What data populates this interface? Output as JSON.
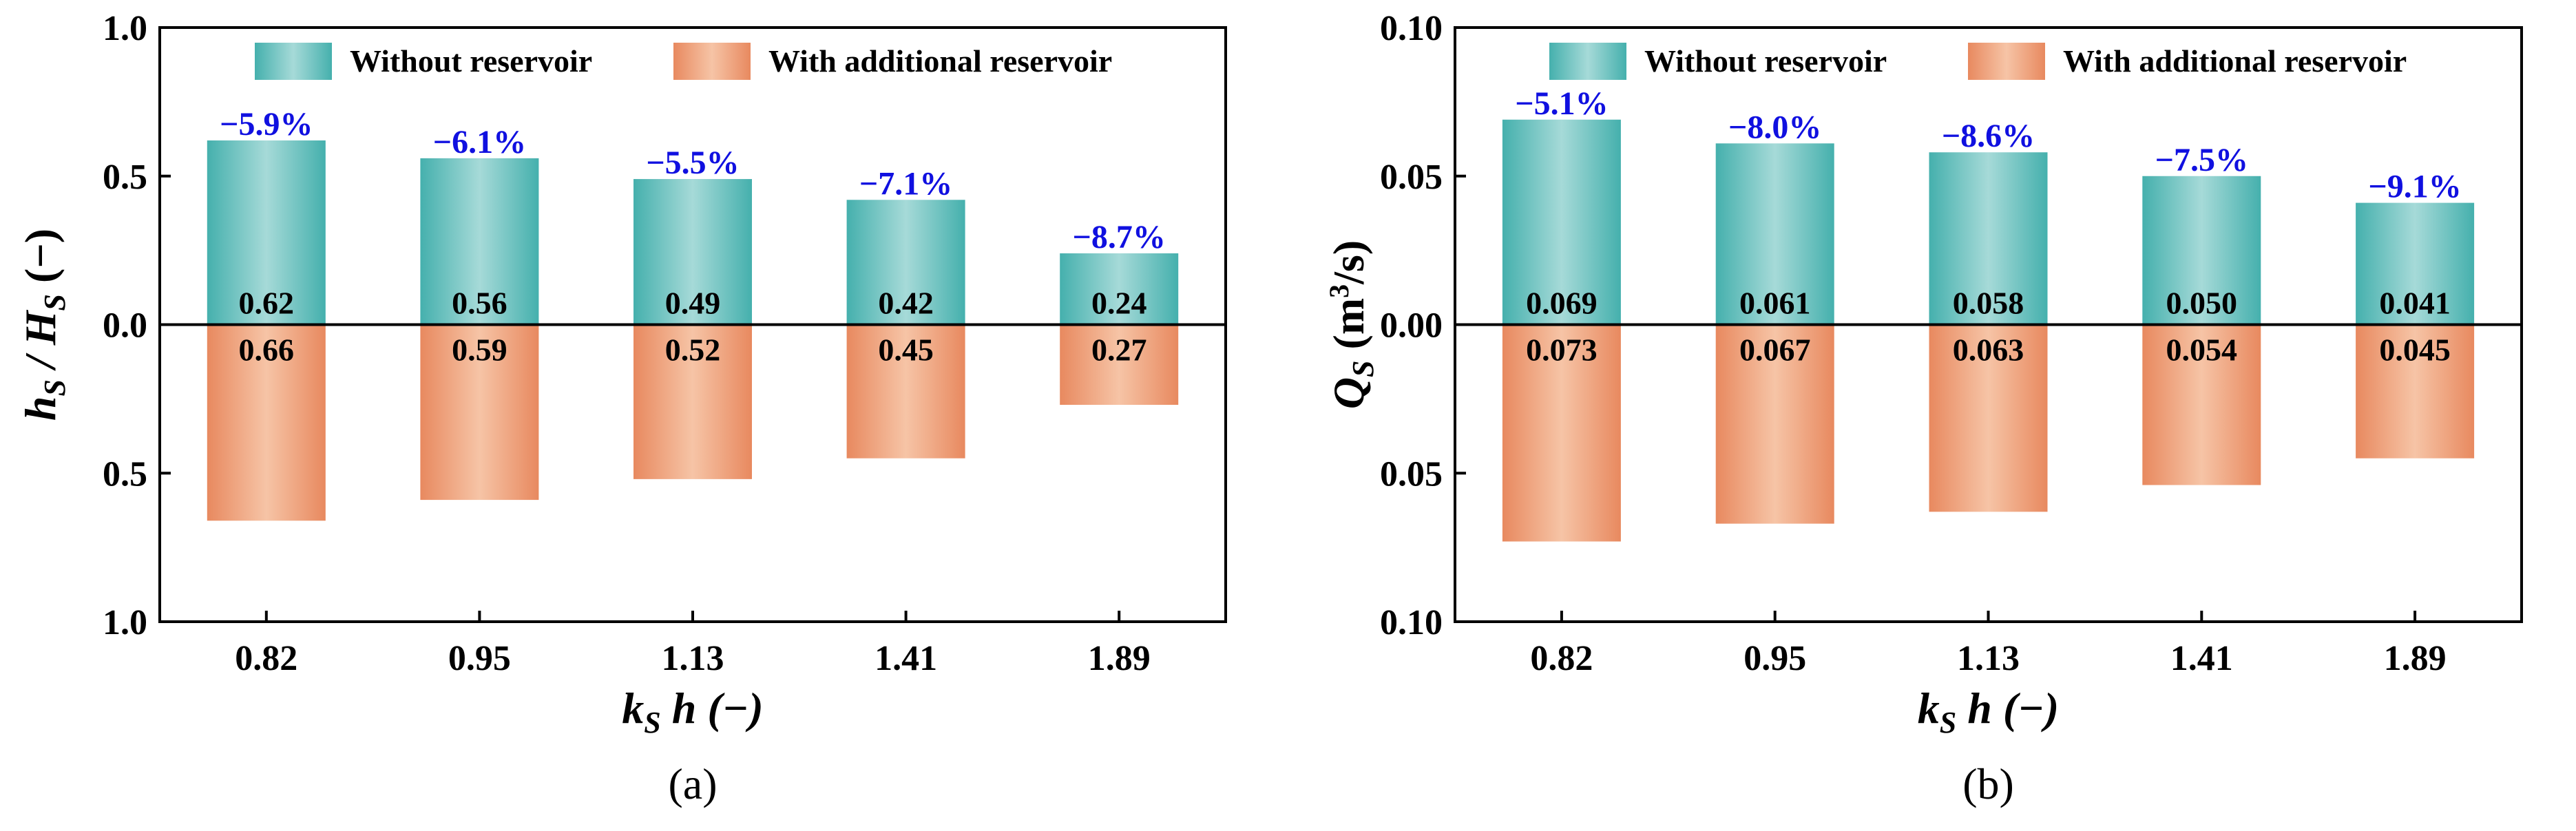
{
  "colors": {
    "without": "#45b0ad",
    "with": "#e8895f",
    "pct": "#1010e0"
  },
  "legend": {
    "without": "Without reservoir",
    "with": "With additional reservoir"
  },
  "chart_data": [
    {
      "type": "bar",
      "panel_label": "(a)",
      "categories": [
        "0.82",
        "0.95",
        "1.13",
        "1.41",
        "1.89"
      ],
      "series": [
        {
          "name": "Without reservoir",
          "direction": "up",
          "values": [
            0.62,
            0.56,
            0.49,
            0.42,
            0.24
          ],
          "labels": [
            "0.62",
            "0.56",
            "0.49",
            "0.42",
            "0.24"
          ]
        },
        {
          "name": "With additional reservoir",
          "direction": "down",
          "values": [
            0.66,
            0.59,
            0.52,
            0.45,
            0.27
          ],
          "labels": [
            "0.66",
            "0.59",
            "0.52",
            "0.45",
            "0.27"
          ]
        }
      ],
      "change_labels": [
        "−5.9%",
        "−6.1%",
        "−5.5%",
        "−7.1%",
        "−8.7%"
      ],
      "yticks": [
        {
          "value": 1.0,
          "label": "1.0"
        },
        {
          "value": 0.5,
          "label": "0.5"
        },
        {
          "value": 0.0,
          "label": "0.0"
        },
        {
          "value": -0.5,
          "label": "0.5"
        },
        {
          "value": -1.0,
          "label": "1.0"
        }
      ],
      "ylim": [
        -1.0,
        1.0
      ],
      "xlabel": {
        "main1": "k",
        "sub1": "S",
        "main2": " h (−)"
      },
      "ylabel": {
        "main1": "h",
        "sub1": "S",
        "mid": " / ",
        "main2": "H",
        "sub2": "S",
        "tail": " (−)"
      }
    },
    {
      "type": "bar",
      "panel_label": "(b)",
      "categories": [
        "0.82",
        "0.95",
        "1.13",
        "1.41",
        "1.89"
      ],
      "series": [
        {
          "name": "Without reservoir",
          "direction": "up",
          "values": [
            0.069,
            0.061,
            0.058,
            0.05,
            0.041
          ],
          "labels": [
            "0.069",
            "0.061",
            "0.058",
            "0.050",
            "0.041"
          ]
        },
        {
          "name": "With additional reservoir",
          "direction": "down",
          "values": [
            0.073,
            0.067,
            0.063,
            0.054,
            0.045
          ],
          "labels": [
            "0.073",
            "0.067",
            "0.063",
            "0.054",
            "0.045"
          ]
        }
      ],
      "change_labels": [
        "−5.1%",
        "−8.0%",
        "−8.6%",
        "−7.5%",
        "−9.1%"
      ],
      "yticks": [
        {
          "value": 0.1,
          "label": "0.10"
        },
        {
          "value": 0.05,
          "label": "0.05"
        },
        {
          "value": 0.0,
          "label": "0.00"
        },
        {
          "value": -0.05,
          "label": "0.05"
        },
        {
          "value": -0.1,
          "label": "0.10"
        }
      ],
      "ylim": [
        -0.1,
        0.1
      ],
      "xlabel": {
        "main1": "k",
        "sub1": "S",
        "main2": " h (−)"
      },
      "ylabel": {
        "main1": "Q",
        "sub1": "S",
        "tail": " (m",
        "sup": "3",
        "tail2": "/s)"
      }
    }
  ]
}
